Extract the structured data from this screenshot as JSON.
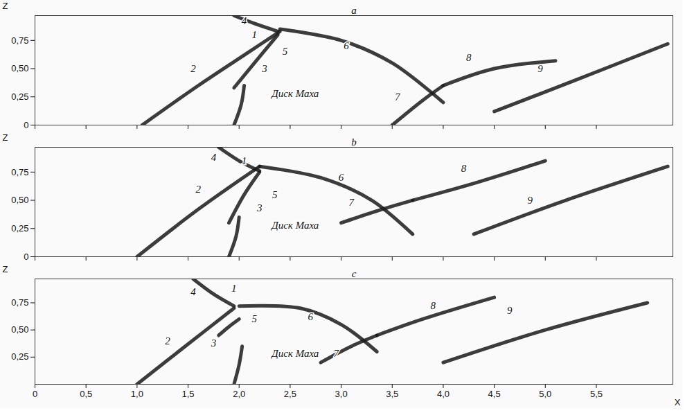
{
  "chart_data": [
    {
      "type": "line",
      "title": "a",
      "x_label": null,
      "y_label": "Z",
      "xlim": [
        0,
        6.25
      ],
      "ylim": [
        0,
        0.97
      ],
      "xticks": [
        0,
        {
          "value": 0.5,
          "label": "0,5"
        },
        {
          "value": 1,
          "label": "1,0"
        },
        {
          "value": 1.5,
          "label": "1,5"
        },
        {
          "value": 2,
          "label": "2,0"
        },
        {
          "value": 2.5,
          "label": "2,5"
        },
        {
          "value": 3,
          "label": "3,0"
        },
        {
          "value": 3.5,
          "label": "3,5"
        },
        {
          "value": 4,
          "label": "4,0"
        },
        {
          "value": 4.5,
          "label": "4,5"
        },
        {
          "value": 5,
          "label": "5,0"
        },
        {
          "value": 5.5,
          "label": "5,5"
        }
      ],
      "yticks": [
        0,
        {
          "value": 0.25,
          "label": "0,25"
        },
        {
          "value": 0.5,
          "label": "0,50"
        },
        {
          "value": 0.75,
          "label": "0,75"
        }
      ],
      "tick_labels": "y",
      "color": "#1a1a1a",
      "series": [
        {
          "values": [
            [
              1.05,
              0
            ],
            [
              1.6,
              0.35
            ],
            [
              2.1,
              0.65
            ],
            [
              2.4,
              0.83
            ]
          ]
        },
        {
          "values": [
            [
              1.95,
              0.33
            ],
            [
              2.15,
              0.55
            ],
            [
              2.38,
              0.8
            ]
          ]
        },
        {
          "values": [
            [
              1.95,
              0.97
            ],
            [
              2.15,
              0.9
            ],
            [
              2.38,
              0.83
            ]
          ]
        },
        {
          "values": [
            [
              2.4,
              0.85
            ],
            [
              3.0,
              0.75
            ],
            [
              3.5,
              0.55
            ],
            [
              4.0,
              0.2
            ]
          ]
        },
        {
          "values": [
            [
              3.5,
              0
            ],
            [
              3.8,
              0.22
            ],
            [
              4.0,
              0.35
            ]
          ]
        },
        {
          "values": [
            [
              4.0,
              0.35
            ],
            [
              4.5,
              0.5
            ],
            [
              5.1,
              0.57
            ]
          ]
        },
        {
          "values": [
            [
              4.5,
              0.12
            ],
            [
              5.3,
              0.4
            ],
            [
              6.2,
              0.72
            ]
          ]
        },
        {
          "values": [
            [
              1.95,
              0
            ],
            [
              2.02,
              0.18
            ],
            [
              2.05,
              0.35
            ]
          ]
        }
      ],
      "annotations": [
        {
          "text": "1",
          "x": 2.15,
          "y": 0.8
        },
        {
          "text": "2",
          "x": 1.55,
          "y": 0.5
        },
        {
          "text": "3",
          "x": 2.25,
          "y": 0.5
        },
        {
          "text": "4",
          "x": 2.05,
          "y": 0.92
        },
        {
          "text": "5",
          "x": 2.45,
          "y": 0.65
        },
        {
          "text": "6",
          "x": 3.05,
          "y": 0.7
        },
        {
          "text": "7",
          "x": 3.55,
          "y": 0.25
        },
        {
          "text": "8",
          "x": 4.25,
          "y": 0.6
        },
        {
          "text": "9",
          "x": 4.95,
          "y": 0.5
        },
        {
          "text": "Диск Маха",
          "x": 2.55,
          "y": 0.28
        }
      ]
    },
    {
      "type": "line",
      "title": "b",
      "x_label": null,
      "y_label": "Z",
      "xlim": [
        0,
        6.25
      ],
      "ylim": [
        0,
        0.97
      ],
      "xticks": [
        0,
        {
          "value": 0.5,
          "label": "0,5"
        },
        {
          "value": 1,
          "label": "1,0"
        },
        {
          "value": 1.5,
          "label": "1,5"
        },
        {
          "value": 2,
          "label": "2,0"
        },
        {
          "value": 2.5,
          "label": "2,5"
        },
        {
          "value": 3,
          "label": "3,0"
        },
        {
          "value": 3.5,
          "label": "3,5"
        },
        {
          "value": 4,
          "label": "4,0"
        },
        {
          "value": 4.5,
          "label": "4,5"
        },
        {
          "value": 5,
          "label": "5,0"
        },
        {
          "value": 5.5,
          "label": "5,5"
        }
      ],
      "yticks": [
        0,
        {
          "value": 0.25,
          "label": "0,25"
        },
        {
          "value": 0.5,
          "label": "0,50"
        },
        {
          "value": 0.75,
          "label": "0,75"
        }
      ],
      "tick_labels": "y",
      "color": "#1a1a1a",
      "series": [
        {
          "values": [
            [
              1.0,
              0
            ],
            [
              1.6,
              0.42
            ],
            [
              2.2,
              0.8
            ]
          ]
        },
        {
          "values": [
            [
              1.9,
              0.3
            ],
            [
              2.05,
              0.55
            ],
            [
              2.2,
              0.75
            ]
          ]
        },
        {
          "values": [
            [
              1.8,
              0.97
            ],
            [
              2.0,
              0.85
            ],
            [
              2.2,
              0.76
            ]
          ]
        },
        {
          "values": [
            [
              2.2,
              0.8
            ],
            [
              2.8,
              0.7
            ],
            [
              3.3,
              0.5
            ],
            [
              3.7,
              0.2
            ]
          ]
        },
        {
          "values": [
            [
              3.0,
              0.3
            ],
            [
              3.4,
              0.42
            ],
            [
              3.7,
              0.5
            ]
          ]
        },
        {
          "values": [
            [
              3.7,
              0.5
            ],
            [
              4.3,
              0.65
            ],
            [
              5.0,
              0.85
            ]
          ]
        },
        {
          "values": [
            [
              4.3,
              0.2
            ],
            [
              5.2,
              0.5
            ],
            [
              6.2,
              0.8
            ]
          ]
        },
        {
          "values": [
            [
              1.9,
              0
            ],
            [
              1.97,
              0.18
            ],
            [
              2.0,
              0.35
            ]
          ]
        }
      ],
      "annotations": [
        {
          "text": "1",
          "x": 2.05,
          "y": 0.85
        },
        {
          "text": "2",
          "x": 1.6,
          "y": 0.6
        },
        {
          "text": "3",
          "x": 2.2,
          "y": 0.43
        },
        {
          "text": "4",
          "x": 1.75,
          "y": 0.88
        },
        {
          "text": "5",
          "x": 2.35,
          "y": 0.55
        },
        {
          "text": "6",
          "x": 3.0,
          "y": 0.7
        },
        {
          "text": "7",
          "x": 3.1,
          "y": 0.48
        },
        {
          "text": "8",
          "x": 4.2,
          "y": 0.78
        },
        {
          "text": "9",
          "x": 4.85,
          "y": 0.5
        },
        {
          "text": "Диск Маха",
          "x": 2.55,
          "y": 0.28
        }
      ]
    },
    {
      "type": "line",
      "title": "c",
      "x_label": "X",
      "y_label": "Z",
      "xlim": [
        0,
        6.25
      ],
      "ylim": [
        0,
        0.97
      ],
      "xticks": [
        0,
        {
          "value": 0.5,
          "label": "0,5"
        },
        {
          "value": 1,
          "label": "1,0"
        },
        {
          "value": 1.5,
          "label": "1,5"
        },
        {
          "value": 2,
          "label": "2,0"
        },
        {
          "value": 2.5,
          "label": "2,5"
        },
        {
          "value": 3,
          "label": "3,0"
        },
        {
          "value": 3.5,
          "label": "3,5"
        },
        {
          "value": 4,
          "label": "4,0"
        },
        {
          "value": 4.5,
          "label": "4,5"
        },
        {
          "value": 5,
          "label": "5,0"
        },
        {
          "value": 5.5,
          "label": "5,5"
        }
      ],
      "yticks": [
        {
          "value": 0.25,
          "label": "0,25"
        },
        {
          "value": 0.5,
          "label": "0,50"
        },
        {
          "value": 0.75,
          "label": "0,75"
        }
      ],
      "color": "#1a1a1a",
      "series": [
        {
          "values": [
            [
              1.0,
              0
            ],
            [
              1.5,
              0.37
            ],
            [
              1.95,
              0.7
            ]
          ]
        },
        {
          "values": [
            [
              1.8,
              0.45
            ],
            [
              1.9,
              0.53
            ],
            [
              2.0,
              0.6
            ]
          ]
        },
        {
          "values": [
            [
              1.55,
              0.97
            ],
            [
              1.75,
              0.83
            ],
            [
              1.95,
              0.72
            ]
          ]
        },
        {
          "values": [
            [
              2.0,
              0.72
            ],
            [
              2.6,
              0.7
            ],
            [
              3.0,
              0.55
            ],
            [
              3.35,
              0.3
            ]
          ]
        },
        {
          "values": [
            [
              2.8,
              0.2
            ],
            [
              3.1,
              0.35
            ],
            [
              3.35,
              0.45
            ]
          ]
        },
        {
          "values": [
            [
              3.35,
              0.45
            ],
            [
              3.8,
              0.6
            ],
            [
              4.5,
              0.8
            ]
          ]
        },
        {
          "values": [
            [
              4.0,
              0.2
            ],
            [
              5.0,
              0.5
            ],
            [
              6.0,
              0.75
            ]
          ]
        },
        {
          "values": [
            [
              1.95,
              0
            ],
            [
              2.0,
              0.18
            ],
            [
              2.03,
              0.35
            ]
          ]
        }
      ],
      "annotations": [
        {
          "text": "1",
          "x": 1.95,
          "y": 0.88
        },
        {
          "text": "2",
          "x": 1.3,
          "y": 0.4
        },
        {
          "text": "3",
          "x": 1.75,
          "y": 0.38
        },
        {
          "text": "4",
          "x": 1.55,
          "y": 0.85
        },
        {
          "text": "5",
          "x": 2.15,
          "y": 0.6
        },
        {
          "text": "6",
          "x": 2.7,
          "y": 0.62
        },
        {
          "text": "7",
          "x": 2.95,
          "y": 0.28
        },
        {
          "text": "8",
          "x": 3.9,
          "y": 0.72
        },
        {
          "text": "9",
          "x": 4.65,
          "y": 0.68
        },
        {
          "text": "Диск Маха",
          "x": 2.55,
          "y": 0.28
        }
      ]
    }
  ]
}
